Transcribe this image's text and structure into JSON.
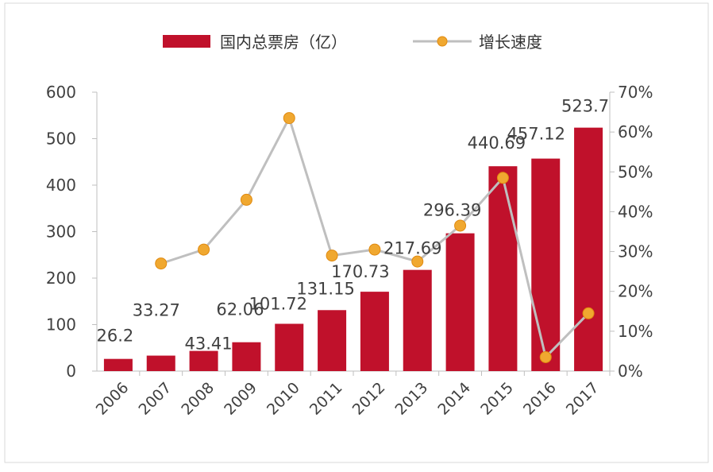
{
  "chart_data": {
    "type": "bar",
    "categories": [
      "2006",
      "2007",
      "2008",
      "2009",
      "2010",
      "2011",
      "2012",
      "2013",
      "2014",
      "2015",
      "2016",
      "2017"
    ],
    "series": [
      {
        "name": "国内总票房（亿）",
        "kind": "bar",
        "axis": "left",
        "values": [
          26.2,
          33.27,
          43.41,
          62.06,
          101.72,
          131.15,
          170.73,
          217.69,
          296.39,
          440.69,
          457.12,
          523.7
        ],
        "labels": [
          "26.2",
          "33.27",
          "43.41",
          "62.06",
          "101.72",
          "131.15",
          "170.73",
          "217.69",
          "296.39",
          "440.69",
          "457.12",
          "523.7"
        ],
        "color": "#c0112b"
      },
      {
        "name": "增长速度",
        "kind": "line",
        "axis": "right",
        "values": [
          null,
          27,
          30.5,
          43,
          63.5,
          29,
          30.5,
          27.5,
          36.5,
          48.5,
          3.5,
          14.5
        ],
        "line_color": "#bfbfbf",
        "marker_color": "#f0a830"
      }
    ],
    "y_left": {
      "ylim": [
        0,
        600
      ],
      "ticks": [
        "0",
        "100",
        "200",
        "300",
        "400",
        "500",
        "600"
      ]
    },
    "y_right": {
      "ylim": [
        0,
        70
      ],
      "ticks": [
        "0%",
        "10%",
        "20%",
        "30%",
        "40%",
        "50%",
        "60%",
        "70%"
      ]
    },
    "legend": {
      "placement": "top-center"
    },
    "grid": false
  }
}
